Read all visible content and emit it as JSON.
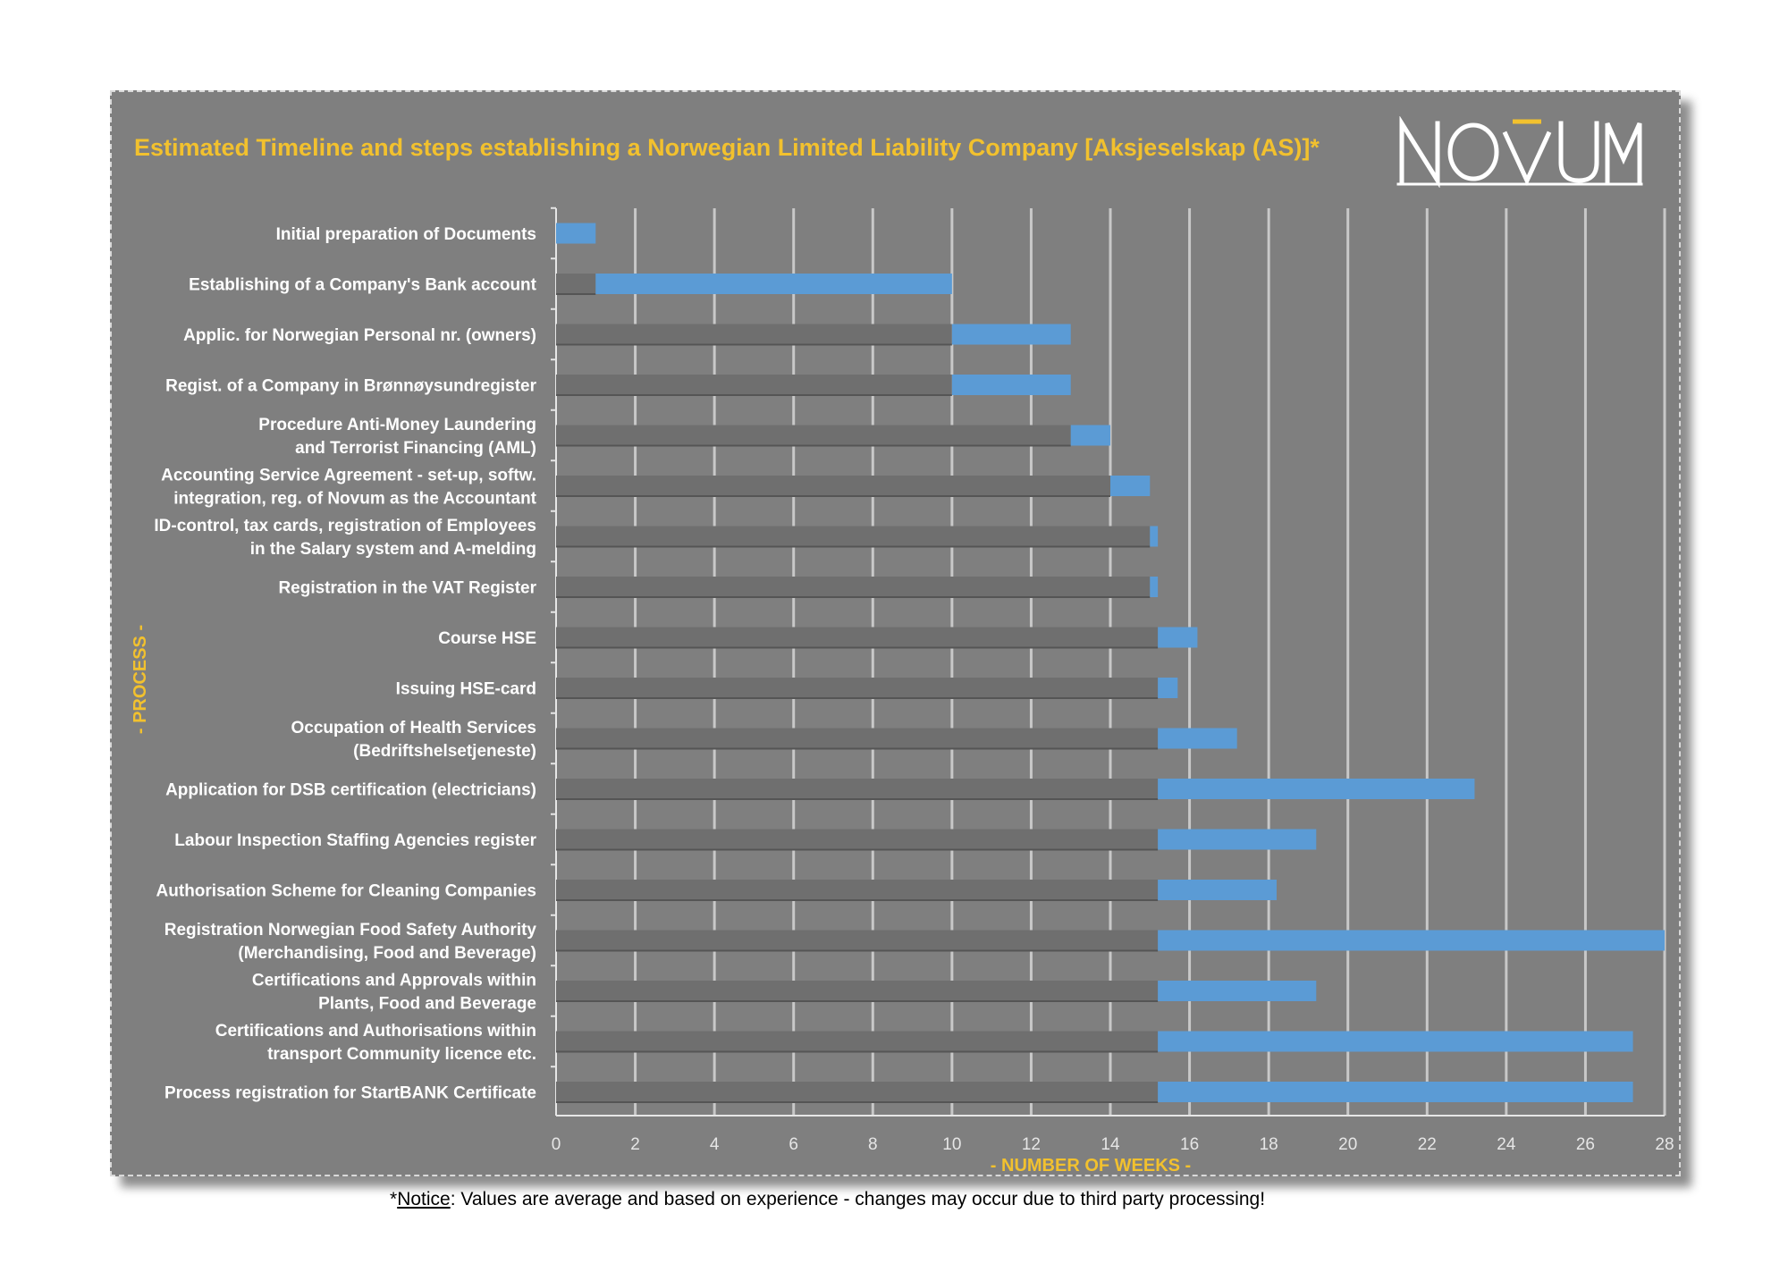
{
  "title": "Estimated Timeline and steps establishing a Norwegian Limited Liability Company [Aksjeselskap (AS)]*",
  "logo_text": "NOVUM",
  "footnote": {
    "prefix": "*",
    "underlined": "Notice",
    "rest": ": Values are average and based on experience - changes may occur due to third party processing!"
  },
  "colors": {
    "panel": "#7f7f7f",
    "bar": "#5b9bd5",
    "offset": "#6f6f6f",
    "title": "#f2c12e",
    "grid": "#c8c8c8"
  },
  "chart_data": {
    "type": "bar",
    "orientation": "horizontal-stacked-gantt",
    "xlabel": "- NUMBER OF WEEKS -",
    "ylabel": "- PROCESS -",
    "xlim": [
      0,
      28
    ],
    "xticks": [
      0,
      2,
      4,
      6,
      8,
      10,
      12,
      14,
      16,
      18,
      20,
      22,
      24,
      26,
      28
    ],
    "grid": true,
    "categories": [
      [
        "Initial preparation of Documents"
      ],
      [
        "Establishing of a Company's Bank account"
      ],
      [
        "Applic. for Norwegian Personal nr. (owners)"
      ],
      [
        "Regist. of a Company in Brønnøysundregister"
      ],
      [
        "Procedure Anti-Money Laundering",
        "and Terrorist Financing (AML)"
      ],
      [
        "Accounting Service Agreement - set-up, softw.",
        "integration, reg. of Novum as the Accountant"
      ],
      [
        "ID-control, tax cards, registration of Employees",
        "in the Salary system and A-melding"
      ],
      [
        "Registration in the VAT Register"
      ],
      [
        "Course HSE"
      ],
      [
        "Issuing HSE-card"
      ],
      [
        "Occupation of Health Services",
        "(Bedriftshelsetjeneste)"
      ],
      [
        "Application for DSB certification (electricians)"
      ],
      [
        "Labour Inspection Staffing Agencies register"
      ],
      [
        "Authorisation Scheme for Cleaning Companies"
      ],
      [
        "Registration Norwegian Food Safety Authority",
        "(Merchandising, Food and Beverage)"
      ],
      [
        "Certifications and Approvals within",
        "Plants, Food and Beverage"
      ],
      [
        "Certifications and Authorisations within",
        "transport Community licence etc."
      ],
      [
        "Process registration for StartBANK Certificate"
      ]
    ],
    "series": [
      {
        "role": "start offset",
        "values": [
          0,
          1,
          10,
          10,
          13,
          14,
          15,
          15,
          15.2,
          15.2,
          15.2,
          15.2,
          15.2,
          15.2,
          15.2,
          15.2,
          15.2,
          15.2
        ]
      },
      {
        "role": "duration",
        "values": [
          1,
          9,
          3,
          3,
          1,
          1,
          0.2,
          0.2,
          1,
          0.5,
          2,
          8,
          4,
          3,
          12.8,
          4,
          12,
          12
        ]
      }
    ]
  }
}
